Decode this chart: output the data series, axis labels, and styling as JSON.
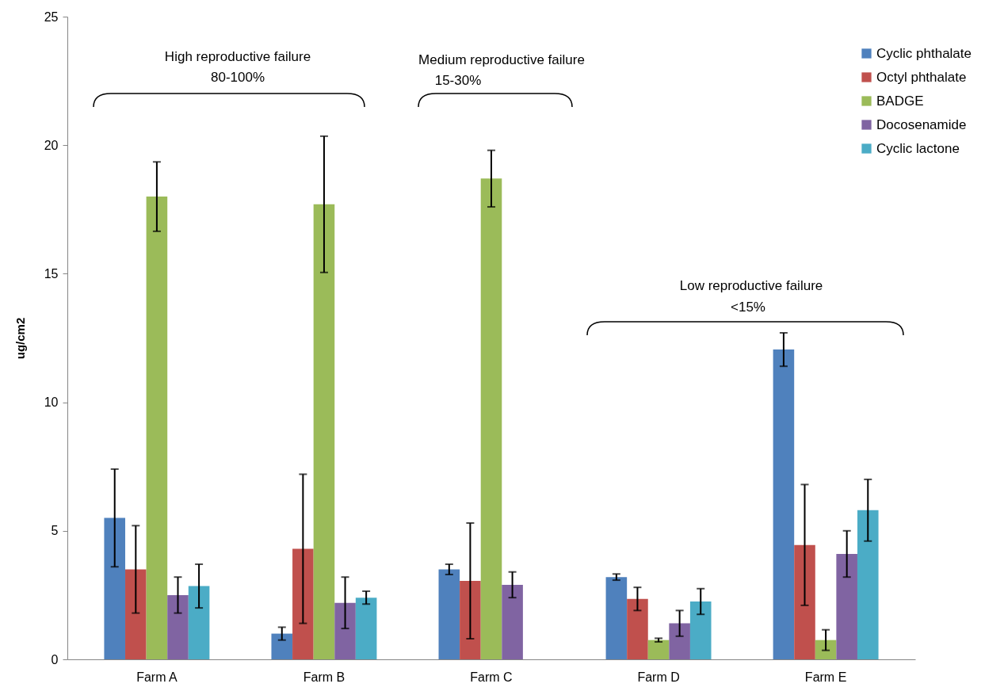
{
  "chart_data": {
    "type": "bar",
    "ylabel": "ug/cm2",
    "categories": [
      "Farm A",
      "Farm B",
      "Farm C",
      "Farm D",
      "Farm E"
    ],
    "series": [
      {
        "name": "Cyclic phthalate",
        "color": "#4f81bd",
        "values": [
          5.5,
          1.0,
          3.5,
          3.2,
          12.05
        ],
        "errors": [
          1.9,
          0.25,
          0.2,
          0.12,
          0.65
        ]
      },
      {
        "name": "Octyl phthalate",
        "color": "#c0504d",
        "values": [
          3.5,
          4.3,
          3.05,
          2.35,
          4.45
        ],
        "errors": [
          1.7,
          2.9,
          2.25,
          0.45,
          2.35
        ]
      },
      {
        "name": "BADGE",
        "color": "#9bbb59",
        "values": [
          18.0,
          17.7,
          18.7,
          0.75,
          0.75
        ],
        "errors": [
          1.35,
          2.65,
          1.1,
          0.07,
          0.4
        ]
      },
      {
        "name": "Docosenamide",
        "color": "#8064a2",
        "values": [
          2.5,
          2.2,
          2.9,
          1.4,
          4.1
        ],
        "errors": [
          0.7,
          1.0,
          0.5,
          0.5,
          0.9
        ]
      },
      {
        "name": "Cyclic lactone",
        "color": "#4bacc6",
        "values": [
          2.85,
          2.4,
          null,
          2.25,
          5.8
        ],
        "errors": [
          0.85,
          0.25,
          null,
          0.5,
          1.2
        ]
      }
    ],
    "ylim": [
      0,
      25
    ],
    "yticks": [
      0,
      5,
      10,
      15,
      20,
      25
    ],
    "grid": false,
    "legend": "top right",
    "annotations": [
      "High reproductive failure",
      "80-100%",
      "Medium reproductive failure",
      "15-30%",
      "Low reproductive failure",
      "<15%"
    ]
  }
}
